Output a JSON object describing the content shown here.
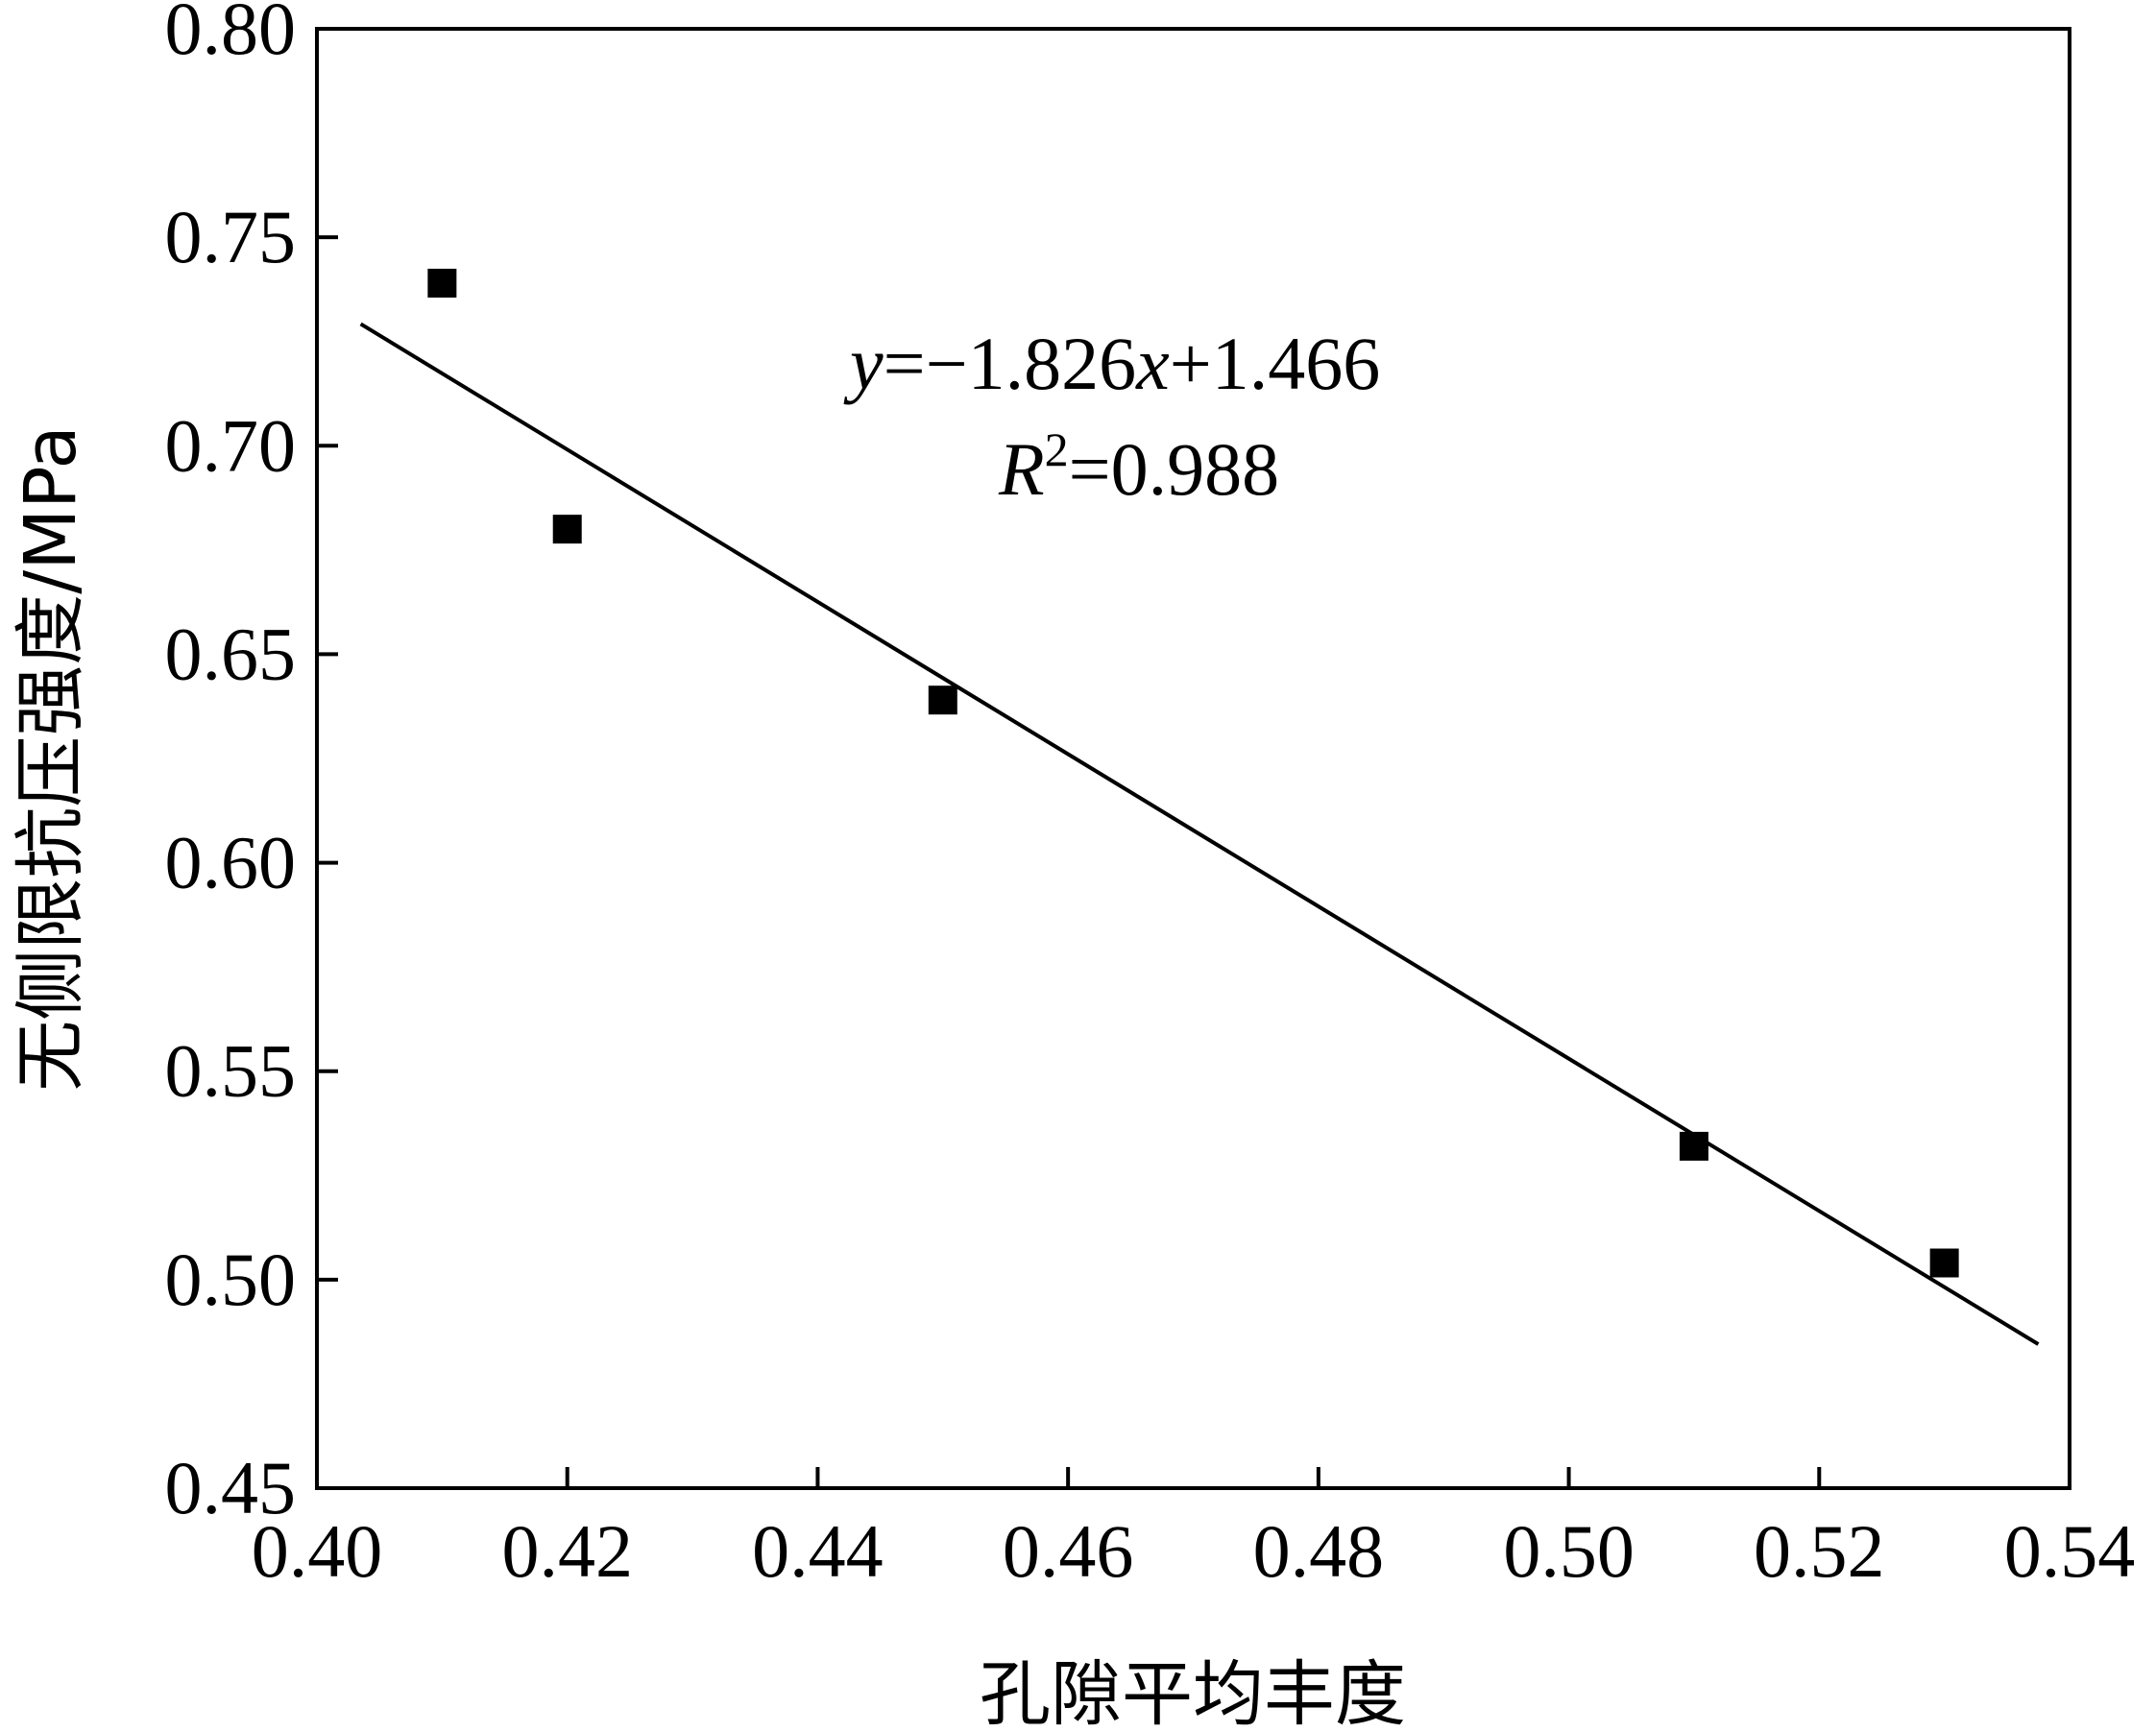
{
  "chart_data": {
    "type": "scatter",
    "title": "",
    "xlabel": "孔隙平均丰度",
    "ylabel": "无侧限抗压强度/MPa",
    "xlim": [
      0.4,
      0.54
    ],
    "ylim": [
      0.45,
      0.8
    ],
    "x_ticks": [
      "0.40",
      "0.42",
      "0.44",
      "0.46",
      "0.48",
      "0.50",
      "0.52",
      "0.54"
    ],
    "y_ticks": [
      "0.45",
      "0.50",
      "0.55",
      "0.60",
      "0.65",
      "0.70",
      "0.75",
      "0.80"
    ],
    "grid": false,
    "legend": "none",
    "series": [
      {
        "points": [
          {
            "x": 0.41,
            "y": 0.739
          },
          {
            "x": 0.42,
            "y": 0.68
          },
          {
            "x": 0.45,
            "y": 0.639
          },
          {
            "x": 0.51,
            "y": 0.532
          },
          {
            "x": 0.53,
            "y": 0.504
          }
        ]
      }
    ],
    "fit_line": {
      "slope": -1.826,
      "intercept": 1.466,
      "x_range": [
        0.4035,
        0.5375
      ]
    },
    "annotation": {
      "equation": {
        "y": "y",
        "eq": "=−1.826",
        "x": "x",
        "rest": "+1.466"
      },
      "r2": {
        "r": "R",
        "sup": "2",
        "rest": "=0.988"
      }
    },
    "colors": {
      "marker": "#000000",
      "line": "#000000",
      "axis": "#000000"
    }
  }
}
